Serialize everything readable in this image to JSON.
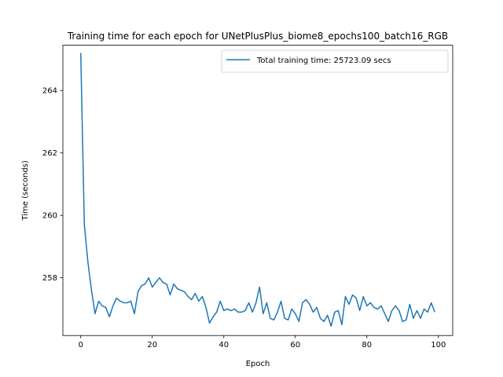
{
  "chart_data": {
    "type": "line",
    "title": "Training time for each epoch for UNetPlusPlus_biome8_epochs100_batch16_RGB",
    "xlabel": "Epoch",
    "ylabel": "Time (seconds)",
    "xlim": [
      -5,
      104
    ],
    "ylim": [
      256.15,
      265.45
    ],
    "xticks": [
      0,
      20,
      40,
      60,
      80,
      100
    ],
    "yticks": [
      258,
      260,
      262,
      264
    ],
    "grid": false,
    "legend": {
      "placement": "upper right"
    },
    "series": [
      {
        "name": "Total training time: 25723.09 secs",
        "color": "#1f77b4",
        "x": [
          0,
          1,
          2,
          3,
          4,
          5,
          6,
          7,
          8,
          9,
          10,
          11,
          12,
          13,
          14,
          15,
          16,
          17,
          18,
          19,
          20,
          21,
          22,
          23,
          24,
          25,
          26,
          27,
          28,
          29,
          30,
          31,
          32,
          33,
          34,
          35,
          36,
          37,
          38,
          39,
          40,
          41,
          42,
          43,
          44,
          45,
          46,
          47,
          48,
          49,
          50,
          51,
          52,
          53,
          54,
          55,
          56,
          57,
          58,
          59,
          60,
          61,
          62,
          63,
          64,
          65,
          66,
          67,
          68,
          69,
          70,
          71,
          72,
          73,
          74,
          75,
          76,
          77,
          78,
          79,
          80,
          81,
          82,
          83,
          84,
          85,
          86,
          87,
          88,
          89,
          90,
          91,
          92,
          93,
          94,
          95,
          96,
          97,
          98,
          99
        ],
        "values": [
          265.2,
          259.7,
          258.5,
          257.6,
          256.85,
          257.25,
          257.1,
          257.05,
          256.75,
          257.1,
          257.35,
          257.25,
          257.2,
          257.2,
          257.25,
          256.85,
          257.55,
          257.75,
          257.8,
          258.0,
          257.7,
          257.85,
          258.0,
          257.85,
          257.8,
          257.45,
          257.8,
          257.65,
          257.6,
          257.55,
          257.4,
          257.3,
          257.5,
          257.25,
          257.4,
          257.05,
          256.55,
          256.75,
          256.9,
          257.25,
          256.95,
          257.0,
          256.95,
          257.0,
          256.9,
          256.9,
          256.95,
          257.2,
          256.9,
          257.2,
          257.7,
          256.85,
          257.2,
          256.7,
          256.65,
          256.9,
          257.25,
          256.7,
          256.65,
          257.0,
          256.85,
          256.6,
          257.2,
          257.3,
          257.15,
          256.9,
          257.05,
          256.7,
          256.6,
          256.8,
          256.45,
          256.9,
          256.95,
          256.5,
          257.4,
          257.15,
          257.45,
          257.35,
          256.95,
          257.4,
          257.1,
          257.2,
          257.05,
          257.0,
          257.1,
          256.85,
          256.6,
          256.95,
          257.1,
          256.95,
          256.6,
          256.65,
          257.15,
          256.7,
          256.95,
          256.7,
          257.0,
          256.9,
          257.2,
          256.9
        ]
      }
    ]
  }
}
